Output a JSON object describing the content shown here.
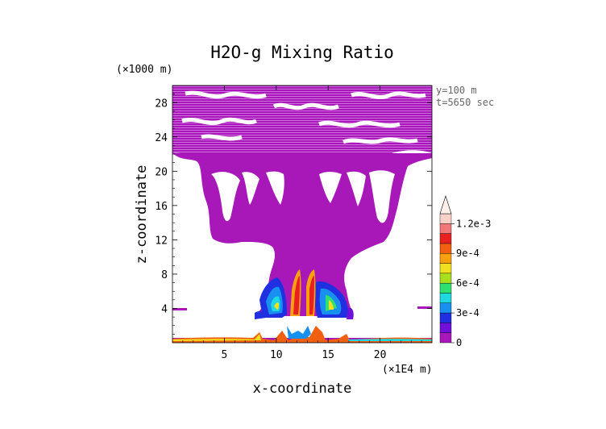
{
  "chart_data": {
    "type": "heatmap",
    "title": "H2O-g Mixing Ratio",
    "xlabel": "x-coordinate",
    "ylabel": "z-coordinate",
    "x_unit": "(×1E4 m)",
    "y_unit": "(×1000 m)",
    "annotations": [
      "y=100 m",
      "t=5650 sec"
    ],
    "x_ticks": [
      5,
      10,
      15,
      20
    ],
    "y_ticks": [
      4,
      8,
      12,
      16,
      20,
      24,
      28
    ],
    "xlim": [
      0,
      25
    ],
    "ylim": [
      0,
      30
    ],
    "colorbar": {
      "labels": [
        "0",
        "3e-4",
        "6e-4",
        "9e-4",
        "1.2e-3"
      ],
      "label_values": [
        0,
        0.0003,
        0.0006,
        0.0009,
        0.0012
      ],
      "colors": [
        "#a818b8",
        "#7010d8",
        "#2030e0",
        "#1890f0",
        "#20d8e0",
        "#30e070",
        "#a8e020",
        "#f0e020",
        "#f8a010",
        "#f06010",
        "#e82020",
        "#f07878",
        "#f8d0c8"
      ],
      "extend": "max"
    },
    "regions": [
      {
        "type": "mixing-ratio-low",
        "color": "#a818b8",
        "x_range": [
          0,
          25
        ],
        "z_range": [
          9,
          30
        ]
      },
      {
        "type": "mixing-ratio-mid",
        "color": "#1890f0",
        "x_range": [
          8.5,
          16.5
        ],
        "z_range": [
          2.5,
          6.5
        ]
      },
      {
        "type": "mixing-ratio-high",
        "color": "#f8a010",
        "x_range": [
          9.5,
          15.5
        ],
        "z_range": [
          2.5,
          6
        ]
      },
      {
        "type": "surface-layer",
        "color": "#f06010",
        "x_range": [
          0,
          25
        ],
        "z_range": [
          0,
          0.5
        ]
      }
    ]
  }
}
